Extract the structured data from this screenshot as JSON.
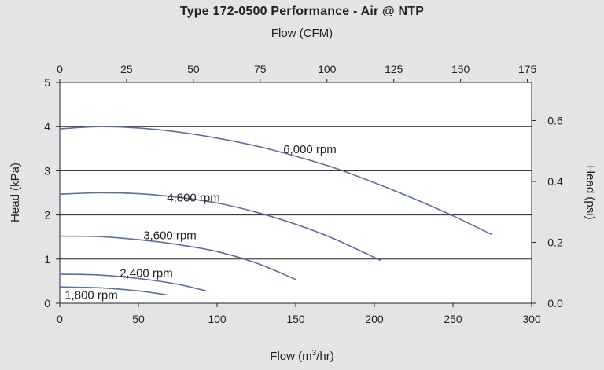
{
  "chart_data": {
    "type": "line",
    "title": "Type 172-0500 Performance - Air @ NTP",
    "top_xlabel": "Flow (CFM)",
    "xlabel_prefix": "Flow (m",
    "xlabel_sup": "3",
    "xlabel_suffix": "/hr)",
    "ylabel": "Head (kPa)",
    "y2label": "Head (psi)",
    "xlim": [
      0,
      300
    ],
    "ylim": [
      0,
      5
    ],
    "top_xlim": [
      0,
      176.6
    ],
    "y2lim": [
      0,
      0.725
    ],
    "xticks": [
      "0",
      "50",
      "100",
      "150",
      "200",
      "250",
      "300"
    ],
    "xtick_values": [
      0,
      50,
      100,
      150,
      200,
      250,
      300
    ],
    "yticks": [
      "0",
      "1",
      "2",
      "3",
      "4",
      "5"
    ],
    "ytick_values": [
      0,
      1,
      2,
      3,
      4,
      5
    ],
    "top_xticks": [
      "0",
      "25",
      "50",
      "75",
      "100",
      "125",
      "150",
      "175"
    ],
    "top_xtick_values": [
      0,
      25,
      50,
      75,
      100,
      125,
      150,
      175
    ],
    "y2ticks": [
      "0.0",
      "0.2",
      "0.4",
      "0.6"
    ],
    "y2tick_values": [
      0.0,
      0.2,
      0.4,
      0.6
    ],
    "grid": "horizontal",
    "line_color": "#5a6ea0",
    "series": [
      {
        "name": "6,000 rpm",
        "x": [
          0,
          25,
          50,
          75,
          100,
          125,
          150,
          175,
          200,
          225,
          250,
          275
        ],
        "y": [
          3.95,
          4.0,
          3.97,
          3.88,
          3.74,
          3.56,
          3.33,
          3.06,
          2.73,
          2.37,
          1.98,
          1.55
        ]
      },
      {
        "name": "4,800 rpm",
        "x": [
          0,
          25,
          50,
          75,
          100,
          125,
          150,
          175,
          204
        ],
        "y": [
          2.47,
          2.5,
          2.48,
          2.4,
          2.27,
          2.06,
          1.79,
          1.45,
          0.97
        ]
      },
      {
        "name": "3,600 rpm",
        "x": [
          0,
          25,
          50,
          75,
          100,
          125,
          150
        ],
        "y": [
          1.52,
          1.51,
          1.44,
          1.33,
          1.17,
          0.91,
          0.54
        ]
      },
      {
        "name": "2,400 rpm",
        "x": [
          0,
          25,
          50,
          75,
          93
        ],
        "y": [
          0.66,
          0.64,
          0.56,
          0.43,
          0.28
        ]
      },
      {
        "name": "1,800 rpm",
        "x": [
          0,
          25,
          50,
          68
        ],
        "y": [
          0.37,
          0.35,
          0.28,
          0.19
        ]
      }
    ]
  }
}
